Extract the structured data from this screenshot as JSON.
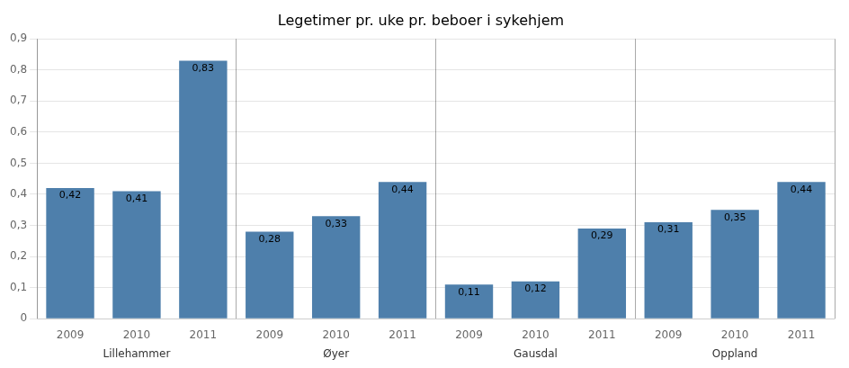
{
  "chart_data": {
    "type": "bar",
    "title": "Legetimer pr. uke pr. beboer i sykehjem",
    "groups": [
      {
        "name": "Lillehammer",
        "categories": [
          "2009",
          "2010",
          "2011"
        ],
        "values": [
          0.42,
          0.41,
          0.83
        ],
        "value_labels": [
          "0,42",
          "0,41",
          "0,83"
        ]
      },
      {
        "name": "Øyer",
        "categories": [
          "2009",
          "2010",
          "2011"
        ],
        "values": [
          0.28,
          0.33,
          0.44
        ],
        "value_labels": [
          "0,28",
          "0,33",
          "0,44"
        ]
      },
      {
        "name": "Gausdal",
        "categories": [
          "2009",
          "2010",
          "2011"
        ],
        "values": [
          0.11,
          0.12,
          0.29
        ],
        "value_labels": [
          "0,11",
          "0,12",
          "0,29"
        ]
      },
      {
        "name": "Oppland",
        "categories": [
          "2009",
          "2010",
          "2011"
        ],
        "values": [
          0.31,
          0.35,
          0.44
        ],
        "value_labels": [
          "0,31",
          "0,35",
          "0,44"
        ]
      }
    ],
    "color": "#4e7fab",
    "ylim": [
      0,
      0.9
    ],
    "yticks": [
      0,
      {
        "value": 0.1,
        "label": "0,1"
      },
      {
        "value": 0.2,
        "label": "0,2"
      },
      {
        "value": 0.3,
        "label": "0,3"
      },
      {
        "value": 0.4,
        "label": "0,4"
      },
      {
        "value": 0.5,
        "label": "0,5"
      },
      {
        "value": 0.6,
        "label": "0,6"
      },
      {
        "value": 0.7,
        "label": "0,7"
      },
      {
        "value": 0.8,
        "label": "0,8"
      },
      {
        "value": 0.9,
        "label": "0,9"
      }
    ],
    "grid": true,
    "data_labels": true
  }
}
